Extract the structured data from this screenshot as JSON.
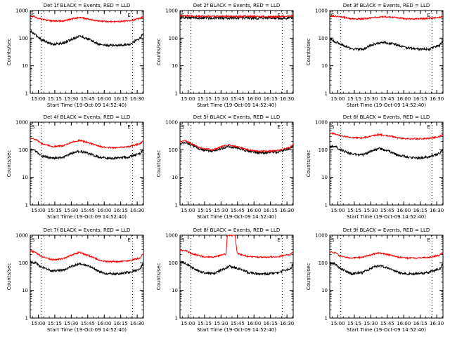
{
  "figure": {
    "panels": [
      {
        "title": "Det 1f BLACK = Events, RED = LLD"
      },
      {
        "title": "Det 2f BLACK = Events, RED = LLD"
      },
      {
        "title": "Det 3f BLACK = Events, RED = LLD"
      },
      {
        "title": "Det 4f BLACK = Events, RED = LLD"
      },
      {
        "title": "Det 5f BLACK = Events, RED = LLD"
      },
      {
        "title": "Det 6f BLACK = Events, RED = LLD"
      },
      {
        "title": "Det 7f BLACK = Events, RED = LLD"
      },
      {
        "title": "Det 8f BLACK = Events, RED = LLD"
      },
      {
        "title": "Det 9f BLACK = Events, RED = LLD"
      }
    ],
    "marker_S": "S",
    "marker_E": "E",
    "xlabel": "Start Time (19-Oct-09 14:52:40)",
    "ylabel": "Counts/sec",
    "xticks": [
      "15:00",
      "15:15",
      "15:30",
      "15:45",
      "16:00",
      "16:15",
      "16:30"
    ],
    "yticks": [
      "1",
      "10",
      "100",
      "1000"
    ]
  },
  "chart_data": [
    {
      "type": "line",
      "x_unit": "minutes after 14:52:40",
      "xlim": [
        0,
        103
      ],
      "ylim": [
        1,
        1000
      ],
      "y_scale": "log",
      "grid": false,
      "vlines": [
        10,
        93
      ],
      "series": [
        {
          "color": "#000000",
          "x": [
            0,
            5,
            10,
            20,
            30,
            40,
            45,
            55,
            62,
            70,
            80,
            90,
            100,
            103
          ],
          "values": [
            180,
            130,
            90,
            60,
            65,
            100,
            120,
            85,
            60,
            55,
            55,
            60,
            100,
            150
          ]
        },
        {
          "color": "#ff0000",
          "x": [
            0,
            5,
            10,
            20,
            30,
            40,
            45,
            55,
            62,
            70,
            80,
            90,
            100,
            103
          ],
          "values": [
            650,
            580,
            480,
            420,
            420,
            520,
            560,
            470,
            420,
            400,
            400,
            420,
            520,
            620
          ]
        }
      ]
    },
    {
      "type": "line",
      "x_unit": "minutes after 14:52:40",
      "xlim": [
        0,
        103
      ],
      "ylim": [
        1,
        1000
      ],
      "y_scale": "log",
      "grid": false,
      "vlines": [
        10,
        93
      ],
      "series": [
        {
          "color": "#000000",
          "x": [
            0,
            20,
            40,
            60,
            80,
            100,
            103
          ],
          "values": [
            560,
            540,
            540,
            540,
            520,
            540,
            560
          ]
        },
        {
          "color": "#ff0000",
          "x": [
            0,
            20,
            40,
            60,
            80,
            100,
            103
          ],
          "values": [
            650,
            620,
            620,
            620,
            600,
            620,
            650
          ]
        }
      ]
    },
    {
      "type": "line",
      "x_unit": "minutes after 14:52:40",
      "xlim": [
        0,
        103
      ],
      "ylim": [
        1,
        1000
      ],
      "y_scale": "log",
      "grid": false,
      "vlines": [
        10,
        93
      ],
      "series": [
        {
          "color": "#000000",
          "x": [
            0,
            10,
            20,
            30,
            40,
            50,
            60,
            70,
            80,
            90,
            100,
            103
          ],
          "values": [
            95,
            60,
            40,
            40,
            60,
            70,
            60,
            45,
            40,
            40,
            55,
            80
          ]
        },
        {
          "color": "#ff0000",
          "x": [
            0,
            10,
            20,
            30,
            40,
            50,
            60,
            70,
            80,
            90,
            100,
            103
          ],
          "values": [
            650,
            600,
            500,
            500,
            560,
            600,
            560,
            500,
            500,
            520,
            560,
            620
          ]
        }
      ]
    },
    {
      "type": "line",
      "x_unit": "minutes after 14:52:40",
      "xlim": [
        0,
        103
      ],
      "ylim": [
        1,
        1000
      ],
      "y_scale": "log",
      "grid": false,
      "vlines": [
        10,
        93
      ],
      "series": [
        {
          "color": "#000000",
          "x": [
            0,
            5,
            10,
            20,
            30,
            40,
            45,
            55,
            62,
            70,
            80,
            90,
            100,
            103
          ],
          "values": [
            100,
            90,
            60,
            50,
            55,
            80,
            90,
            70,
            55,
            50,
            50,
            55,
            75,
            100
          ]
        },
        {
          "color": "#ff0000",
          "x": [
            0,
            5,
            10,
            20,
            30,
            40,
            45,
            55,
            62,
            70,
            80,
            90,
            100,
            103
          ],
          "values": [
            260,
            240,
            170,
            130,
            140,
            200,
            220,
            170,
            135,
            120,
            120,
            130,
            170,
            210
          ]
        }
      ]
    },
    {
      "type": "line",
      "x_unit": "minutes after 14:52:40",
      "xlim": [
        0,
        103
      ],
      "ylim": [
        1,
        1000
      ],
      "y_scale": "log",
      "grid": false,
      "vlines": [
        10,
        93
      ],
      "series": [
        {
          "color": "#000000",
          "x": [
            0,
            5,
            10,
            20,
            30,
            40,
            45,
            55,
            62,
            70,
            80,
            90,
            100,
            103
          ],
          "values": [
            170,
            180,
            150,
            100,
            90,
            120,
            130,
            110,
            90,
            80,
            80,
            85,
            110,
            140
          ]
        },
        {
          "color": "#ff0000",
          "x": [
            0,
            5,
            10,
            20,
            30,
            40,
            45,
            55,
            62,
            70,
            80,
            90,
            100,
            103
          ],
          "values": [
            200,
            210,
            170,
            110,
            100,
            140,
            150,
            120,
            100,
            90,
            90,
            95,
            120,
            160
          ]
        }
      ]
    },
    {
      "type": "line",
      "x_unit": "minutes after 14:52:40",
      "xlim": [
        0,
        103
      ],
      "ylim": [
        1,
        1000
      ],
      "y_scale": "log",
      "grid": false,
      "vlines": [
        10,
        93
      ],
      "series": [
        {
          "color": "#000000",
          "x": [
            0,
            5,
            10,
            20,
            30,
            40,
            45,
            55,
            62,
            70,
            80,
            90,
            100,
            103
          ],
          "values": [
            130,
            130,
            100,
            70,
            65,
            95,
            110,
            85,
            65,
            55,
            50,
            55,
            75,
            100
          ]
        },
        {
          "color": "#ff0000",
          "x": [
            0,
            5,
            10,
            20,
            30,
            40,
            45,
            55,
            62,
            70,
            80,
            90,
            100,
            103
          ],
          "values": [
            400,
            380,
            320,
            270,
            270,
            330,
            360,
            310,
            270,
            250,
            250,
            260,
            300,
            380
          ]
        }
      ]
    },
    {
      "type": "line",
      "x_unit": "minutes after 14:52:40",
      "xlim": [
        0,
        103
      ],
      "ylim": [
        1,
        1000
      ],
      "y_scale": "log",
      "grid": false,
      "vlines": [
        10,
        93
      ],
      "series": [
        {
          "color": "#000000",
          "x": [
            0,
            5,
            10,
            20,
            30,
            40,
            45,
            55,
            62,
            70,
            80,
            90,
            100,
            103
          ],
          "values": [
            110,
            100,
            70,
            50,
            55,
            80,
            95,
            70,
            50,
            40,
            40,
            45,
            60,
            95
          ]
        },
        {
          "color": "#ff0000",
          "x": [
            0,
            5,
            10,
            20,
            30,
            40,
            45,
            55,
            62,
            70,
            80,
            90,
            100,
            103
          ],
          "values": [
            270,
            240,
            170,
            130,
            140,
            210,
            240,
            170,
            130,
            110,
            110,
            120,
            150,
            230
          ]
        }
      ]
    },
    {
      "type": "line",
      "x_unit": "minutes after 14:52:40",
      "xlim": [
        0,
        103
      ],
      "ylim": [
        1,
        1000
      ],
      "y_scale": "log",
      "grid": false,
      "vlines": [
        10,
        93
      ],
      "series": [
        {
          "color": "#000000",
          "x": [
            0,
            5,
            10,
            20,
            30,
            40,
            45,
            55,
            62,
            70,
            80,
            90,
            100,
            103
          ],
          "values": [
            110,
            100,
            70,
            45,
            40,
            60,
            75,
            60,
            45,
            40,
            40,
            45,
            60,
            90
          ]
        },
        {
          "color": "#ff0000",
          "x": [
            0,
            5,
            10,
            20,
            30,
            40,
            42,
            43,
            44,
            49,
            50,
            52,
            55,
            62,
            70,
            80,
            90,
            100,
            103
          ],
          "values": [
            280,
            280,
            220,
            170,
            160,
            200,
            210,
            1000,
            1000,
            1000,
            1000,
            230,
            200,
            170,
            160,
            160,
            170,
            200,
            250
          ]
        }
      ]
    },
    {
      "type": "line",
      "x_unit": "minutes after 14:52:40",
      "xlim": [
        0,
        103
      ],
      "ylim": [
        1,
        1000
      ],
      "y_scale": "log",
      "grid": false,
      "vlines": [
        10,
        93
      ],
      "series": [
        {
          "color": "#000000",
          "x": [
            0,
            5,
            10,
            20,
            30,
            40,
            45,
            55,
            62,
            70,
            80,
            90,
            100,
            103
          ],
          "values": [
            100,
            90,
            60,
            40,
            45,
            70,
            80,
            60,
            45,
            40,
            40,
            45,
            60,
            85
          ]
        },
        {
          "color": "#ff0000",
          "x": [
            0,
            5,
            10,
            20,
            30,
            40,
            45,
            55,
            62,
            70,
            80,
            90,
            100,
            103
          ],
          "values": [
            250,
            230,
            170,
            150,
            160,
            210,
            230,
            190,
            160,
            150,
            150,
            155,
            190,
            240
          ]
        }
      ]
    }
  ]
}
